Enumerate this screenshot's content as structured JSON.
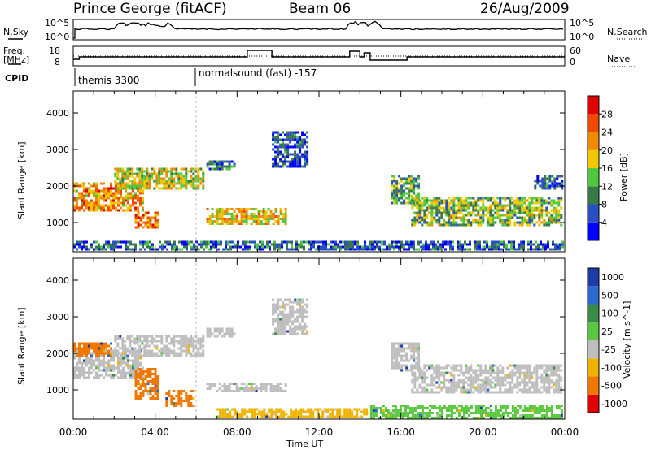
{
  "header": {
    "station": "Prince George (fitACF)",
    "beam": "Beam 06",
    "date": "26/Aug/2009"
  },
  "top_panel": {
    "left_label": "N.Sky",
    "left_ticks": [
      "10^5",
      "10^0"
    ],
    "right_label": "N.Search",
    "right_ticks": [
      "10^5",
      "10^0"
    ]
  },
  "freq_panel": {
    "left_label_1": "Freq.",
    "left_label_2": "[MHz]",
    "left_ticks": [
      "18",
      "8"
    ],
    "right_label": "Nave",
    "right_ticks": [
      "60",
      "0"
    ]
  },
  "cpid_panel": {
    "label": "CPID",
    "entries": [
      {
        "time": "00:00",
        "text": "themis 3300"
      },
      {
        "time": "06:00",
        "text": "normalsound (fast) -157"
      }
    ]
  },
  "colors": {
    "power": [
      "#0000ff",
      "#2a4fc4",
      "#3a7a4a",
      "#4fc840",
      "#f0c800",
      "#f08a00",
      "#f04a00",
      "#e00000"
    ],
    "velocity": [
      "#1e3ca8",
      "#2a6ad0",
      "#3a8a4a",
      "#5ac840",
      "#bebebe",
      "#f0b400",
      "#f07800",
      "#e00000"
    ]
  },
  "chart_data": [
    {
      "type": "heatmap",
      "title": "",
      "xlabel": "",
      "ylabel": "Slant Range [km]",
      "x_ticks": [
        "00:00",
        "04:00",
        "08:00",
        "12:00",
        "16:00",
        "20:00",
        "00:00"
      ],
      "y_ticks": [
        "1000",
        "2000",
        "3000",
        "4000"
      ],
      "ylim": [
        200,
        4600
      ],
      "colorbar_label": "Power [dB]",
      "colorbar_ticks": [
        "4",
        "8",
        "12",
        "16",
        "20",
        "24",
        "28"
      ],
      "colorbar_range": [
        0,
        32
      ],
      "echo_regions": [
        {
          "t0": 0.0,
          "t1": 3.5,
          "r0": 1300,
          "r1": 2100,
          "level": 22
        },
        {
          "t0": 2.0,
          "t1": 6.5,
          "r0": 1900,
          "r1": 2500,
          "level": 17
        },
        {
          "t0": 6.5,
          "t1": 8.0,
          "r0": 2400,
          "r1": 2700,
          "level": 9
        },
        {
          "t0": 3.0,
          "t1": 4.2,
          "r0": 800,
          "r1": 1300,
          "level": 23
        },
        {
          "t0": 6.5,
          "t1": 10.5,
          "r0": 900,
          "r1": 1400,
          "level": 19
        },
        {
          "t0": 9.7,
          "t1": 11.5,
          "r0": 2500,
          "r1": 3500,
          "level": 6
        },
        {
          "t0": 15.5,
          "t1": 17.0,
          "r0": 1500,
          "r1": 2300,
          "level": 12
        },
        {
          "t0": 16.5,
          "t1": 24.0,
          "r0": 900,
          "r1": 1700,
          "level": 14
        },
        {
          "t0": 22.5,
          "t1": 24.0,
          "r0": 1900,
          "r1": 2300,
          "level": 7
        },
        {
          "t0": 0.0,
          "t1": 24.0,
          "r0": 200,
          "r1": 500,
          "level": 7
        }
      ]
    },
    {
      "type": "heatmap",
      "title": "",
      "xlabel": "Time UT",
      "ylabel": "Slant Range [km]",
      "x_ticks": [
        "00:00",
        "04:00",
        "08:00",
        "12:00",
        "16:00",
        "20:00",
        "00:00"
      ],
      "y_ticks": [
        "1000",
        "2000",
        "3000",
        "4000"
      ],
      "ylim": [
        200,
        4600
      ],
      "colorbar_label": "Velocity [m s^-1]",
      "colorbar_ticks": [
        "1000",
        "500",
        "100",
        "25",
        "-25",
        "-100",
        "-500",
        "-1000"
      ],
      "echo_regions": [
        {
          "t0": 0.0,
          "t1": 3.5,
          "r0": 1300,
          "r1": 2100,
          "level": 4
        },
        {
          "t0": 2.0,
          "t1": 6.5,
          "r0": 1900,
          "r1": 2500,
          "level": 4
        },
        {
          "t0": 6.5,
          "t1": 8.0,
          "r0": 2400,
          "r1": 2700,
          "level": 4
        },
        {
          "t0": 3.0,
          "t1": 4.2,
          "r0": 700,
          "r1": 1600,
          "level": 6
        },
        {
          "t0": 4.5,
          "t1": 6.0,
          "r0": 500,
          "r1": 1000,
          "level": 6
        },
        {
          "t0": 0.0,
          "t1": 2.0,
          "r0": 1900,
          "r1": 2300,
          "level": 6
        },
        {
          "t0": 6.5,
          "t1": 10.5,
          "r0": 900,
          "r1": 1200,
          "level": 4
        },
        {
          "t0": 9.7,
          "t1": 11.5,
          "r0": 2500,
          "r1": 3500,
          "level": 4
        },
        {
          "t0": 15.5,
          "t1": 17.0,
          "r0": 1500,
          "r1": 2300,
          "level": 4
        },
        {
          "t0": 16.5,
          "t1": 24.0,
          "r0": 900,
          "r1": 1700,
          "level": 4
        },
        {
          "t0": 7.0,
          "t1": 14.5,
          "r0": 200,
          "r1": 500,
          "level": 5
        },
        {
          "t0": 14.5,
          "t1": 24.0,
          "r0": 200,
          "r1": 600,
          "level": 3
        }
      ]
    }
  ],
  "axis": {
    "xlabel": "Time UT"
  }
}
